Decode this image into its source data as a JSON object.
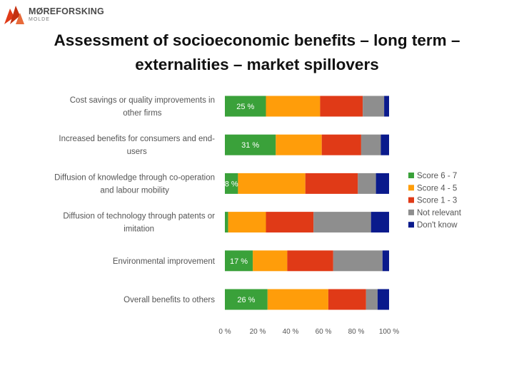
{
  "logo": {
    "name": "MØREFORSKING",
    "sub": "MOLDE"
  },
  "title_line1": "Assessment of socioeconomic benefits – long term –",
  "title_line2": "externalities – market spillovers",
  "chart_data": {
    "type": "bar",
    "orientation": "horizontal",
    "stacked": "percent",
    "categories": [
      [
        "Cost savings or quality improvements in",
        "other firms"
      ],
      [
        "Increased benefits for consumers and end-",
        "users"
      ],
      [
        "Diffusion of knowledge through co-operation",
        "and labour mobility"
      ],
      [
        "Diffusion of technology through patents or",
        "imitation"
      ],
      [
        "Environmental improvement"
      ],
      [
        "Overall benefits to others"
      ]
    ],
    "series": [
      {
        "name": "Score 6 - 7",
        "color": "#3aa13a",
        "values": [
          25,
          31,
          8,
          2,
          17,
          26
        ]
      },
      {
        "name": "Score 4 - 5",
        "color": "#ff9d0a",
        "values": [
          33,
          28,
          41,
          23,
          21,
          37
        ]
      },
      {
        "name": "Score 1 - 3",
        "color": "#e03a17",
        "values": [
          26,
          24,
          32,
          29,
          28,
          23
        ]
      },
      {
        "name": "Not relevant",
        "color": "#8e8e8e",
        "values": [
          13,
          12,
          11,
          35,
          30,
          7
        ]
      },
      {
        "name": "Don't know",
        "color": "#0a1a8c",
        "values": [
          3,
          5,
          8,
          11,
          4,
          7
        ]
      }
    ],
    "data_labels": [
      "25 %",
      "31 %",
      "8 %",
      "",
      "17 %",
      "26 %"
    ],
    "x_ticks": [
      "0 %",
      "20 %",
      "40 %",
      "60 %",
      "80 %",
      "100 %"
    ],
    "xlim": [
      0,
      100
    ],
    "grid": false,
    "legend_position": "right"
  }
}
